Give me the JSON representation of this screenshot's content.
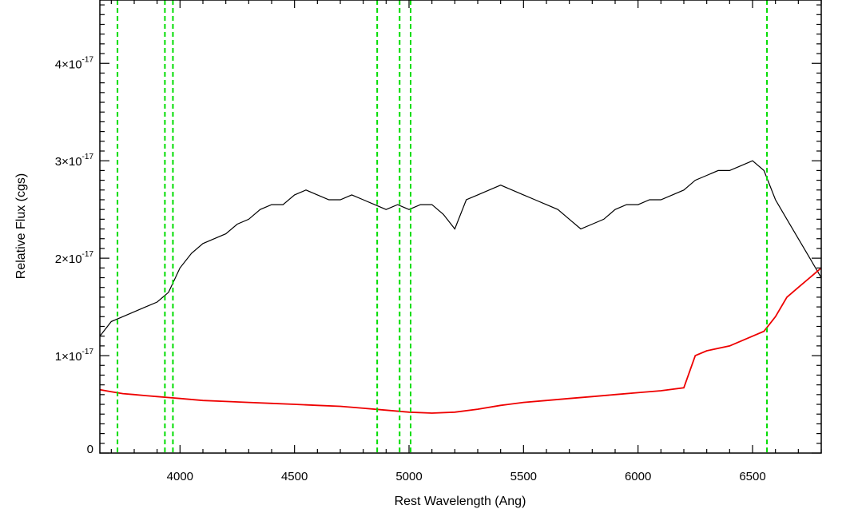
{
  "chart_data": {
    "type": "line",
    "xlabel": "Rest Wavelength (Ang)",
    "ylabel": "Relative Flux (cgs)",
    "xlim": [
      3650,
      6800
    ],
    "ylim": [
      0,
      4.65e-17
    ],
    "x_ticks": [
      {
        "value": 4000,
        "label": "4000"
      },
      {
        "value": 4500,
        "label": "4500"
      },
      {
        "value": 5000,
        "label": "5000"
      },
      {
        "value": 5500,
        "label": "5500"
      },
      {
        "value": 6000,
        "label": "6000"
      },
      {
        "value": 6500,
        "label": "6500"
      }
    ],
    "y_ticks": [
      {
        "value": 0,
        "mantissa": "0",
        "exponent": ""
      },
      {
        "value": 1e-17,
        "mantissa": "1×10",
        "exponent": "-17"
      },
      {
        "value": 2e-17,
        "mantissa": "2×10",
        "exponent": "-17"
      },
      {
        "value": 3e-17,
        "mantissa": "3×10",
        "exponent": "-17"
      },
      {
        "value": 4e-17,
        "mantissa": "4×10",
        "exponent": "-17"
      }
    ],
    "grid": false,
    "legend": "none",
    "colors": {
      "spectrum": "#000000",
      "error": "#ee0000",
      "lines": "#00dd00"
    },
    "reference_lines": [
      3727,
      3934,
      3969,
      4861,
      4959,
      5007,
      6563
    ],
    "series": [
      {
        "role": "spectrum",
        "x": [
          3650,
          3700,
          3750,
          3800,
          3850,
          3900,
          3950,
          4000,
          4050,
          4100,
          4150,
          4200,
          4250,
          4300,
          4350,
          4400,
          4450,
          4500,
          4550,
          4600,
          4650,
          4700,
          4750,
          4800,
          4850,
          4900,
          4950,
          5000,
          5050,
          5100,
          5150,
          5200,
          5250,
          5300,
          5350,
          5400,
          5450,
          5500,
          5550,
          5600,
          5650,
          5700,
          5750,
          5800,
          5850,
          5900,
          5950,
          6000,
          6050,
          6100,
          6150,
          6200,
          6250,
          6300,
          6350,
          6400,
          6450,
          6500,
          6550,
          6600,
          6650,
          6700,
          6750,
          6800
        ],
        "y": [
          1.2e-17,
          1.35e-17,
          1.4e-17,
          1.45e-17,
          1.5e-17,
          1.55e-17,
          1.65e-17,
          1.9e-17,
          2.05e-17,
          2.15e-17,
          2.2e-17,
          2.25e-17,
          2.35e-17,
          2.4e-17,
          2.5e-17,
          2.55e-17,
          2.55e-17,
          2.65e-17,
          2.7e-17,
          2.65e-17,
          2.6e-17,
          2.6e-17,
          2.65e-17,
          2.6e-17,
          2.55e-17,
          2.5e-17,
          2.55e-17,
          2.5e-17,
          2.55e-17,
          2.55e-17,
          2.45e-17,
          2.3e-17,
          2.6e-17,
          2.65e-17,
          2.7e-17,
          2.75e-17,
          2.7e-17,
          2.65e-17,
          2.6e-17,
          2.55e-17,
          2.5e-17,
          2.4e-17,
          2.3e-17,
          2.35e-17,
          2.4e-17,
          2.5e-17,
          2.55e-17,
          2.55e-17,
          2.6e-17,
          2.6e-17,
          2.65e-17,
          2.7e-17,
          2.8e-17,
          2.85e-17,
          2.9e-17,
          2.9e-17,
          2.95e-17,
          3e-17,
          2.9e-17,
          2.6e-17,
          2.4e-17,
          2.2e-17,
          2e-17,
          1.8e-17
        ]
      },
      {
        "role": "error",
        "x": [
          3650,
          3700,
          3750,
          3800,
          3850,
          3900,
          3950,
          4000,
          4100,
          4200,
          4300,
          4400,
          4500,
          4600,
          4700,
          4800,
          4900,
          5000,
          5100,
          5200,
          5300,
          5400,
          5500,
          5600,
          5700,
          5800,
          5900,
          6000,
          6100,
          6200,
          6250,
          6300,
          6400,
          6500,
          6550,
          6600,
          6650,
          6700,
          6750,
          6800
        ],
        "y": [
          6.5e-18,
          6.3e-18,
          6.1e-18,
          6e-18,
          5.9e-18,
          5.8e-18,
          5.7e-18,
          5.6e-18,
          5.4e-18,
          5.3e-18,
          5.2e-18,
          5.1e-18,
          5e-18,
          4.9e-18,
          4.8e-18,
          4.6e-18,
          4.4e-18,
          4.2e-18,
          4.1e-18,
          4.2e-18,
          4.5e-18,
          4.9e-18,
          5.2e-18,
          5.4e-18,
          5.6e-18,
          5.8e-18,
          6e-18,
          6.2e-18,
          6.4e-18,
          6.7e-18,
          1e-17,
          1.05e-17,
          1.1e-17,
          1.2e-17,
          1.25e-17,
          1.4e-17,
          1.6e-17,
          1.7e-17,
          1.8e-17,
          1.9e-17
        ]
      }
    ]
  }
}
